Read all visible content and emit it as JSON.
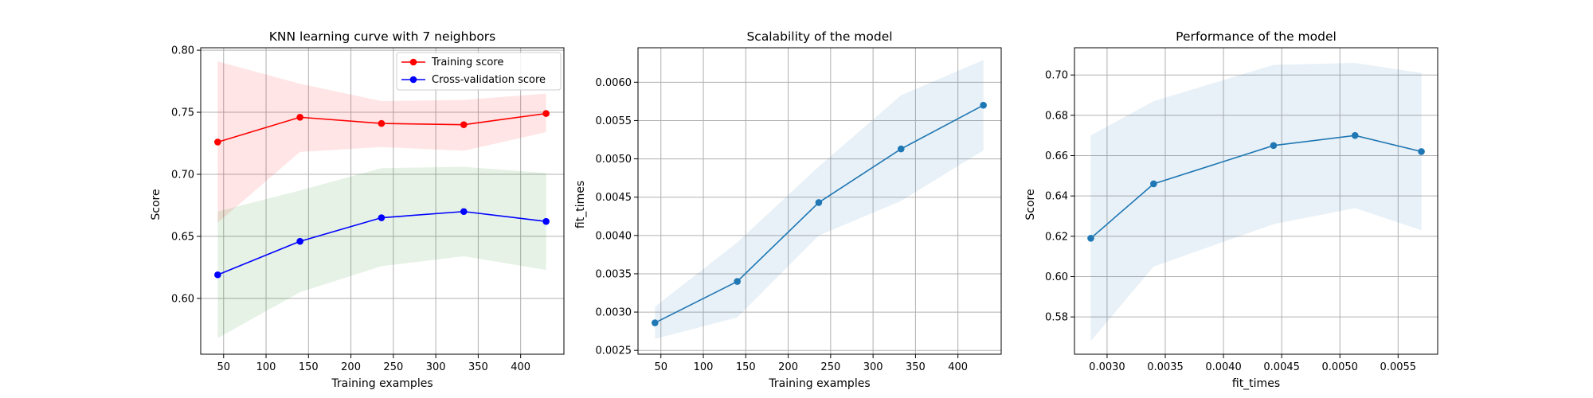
{
  "chart_data": [
    {
      "type": "line",
      "title": "KNN learning curve with 7 neighbors",
      "xlabel": "Training examples",
      "ylabel": "Score",
      "xlim": [
        23,
        451
      ],
      "ylim": [
        0.555,
        0.802
      ],
      "xticks": [
        50,
        100,
        150,
        200,
        250,
        300,
        350,
        400
      ],
      "yticks": [
        0.6,
        0.65,
        0.7,
        0.75,
        0.8
      ],
      "ytick_decimals": 2,
      "grid": true,
      "legend": "top-right",
      "x": [
        43,
        140,
        236,
        333,
        430
      ],
      "series": [
        {
          "name": "Training score",
          "color": "#ff0000",
          "marker": "circle",
          "values": [
            0.726,
            0.746,
            0.741,
            0.74,
            0.749
          ],
          "band_lower": [
            0.661,
            0.718,
            0.722,
            0.719,
            0.734
          ],
          "band_upper": [
            0.791,
            0.773,
            0.759,
            0.76,
            0.765
          ],
          "band_color": "#ff0000"
        },
        {
          "name": "Cross-validation score",
          "color": "#0000ff",
          "marker": "circle",
          "values": [
            0.619,
            0.646,
            0.665,
            0.67,
            0.662
          ],
          "band_lower": [
            0.568,
            0.605,
            0.626,
            0.634,
            0.623
          ],
          "band_upper": [
            0.67,
            0.687,
            0.705,
            0.706,
            0.701
          ],
          "band_color": "#008000"
        }
      ]
    },
    {
      "type": "line",
      "title": "Scalability of the model",
      "xlabel": "Training examples",
      "ylabel": "fit_times",
      "xlim": [
        23,
        451
      ],
      "ylim": [
        0.00245,
        0.00645
      ],
      "xticks": [
        50,
        100,
        150,
        200,
        250,
        300,
        350,
        400
      ],
      "yticks": [
        0.0025,
        0.003,
        0.0035,
        0.004,
        0.0045,
        0.005,
        0.0055,
        0.006
      ],
      "ytick_decimals": 4,
      "grid": true,
      "x": [
        43,
        140,
        236,
        333,
        430
      ],
      "series": [
        {
          "name": "",
          "color": "#1f77b4",
          "marker": "circle",
          "values": [
            0.00286,
            0.0034,
            0.00443,
            0.00513,
            0.0057
          ],
          "band_lower": [
            0.00265,
            0.00293,
            0.004,
            0.00445,
            0.00511
          ],
          "band_upper": [
            0.00307,
            0.00391,
            0.0049,
            0.00583,
            0.00629
          ],
          "band_color": "#1f77b4"
        }
      ]
    },
    {
      "type": "line",
      "title": "Performance of the model",
      "xlabel": "fit_times",
      "ylabel": "Score",
      "xlim": [
        0.00272,
        0.00584
      ],
      "ylim": [
        0.5615,
        0.7135
      ],
      "xticks": [
        0.003,
        0.0035,
        0.004,
        0.0045,
        0.005,
        0.0055
      ],
      "xtick_decimals": 4,
      "yticks": [
        0.58,
        0.6,
        0.62,
        0.64,
        0.66,
        0.68,
        0.7
      ],
      "ytick_decimals": 2,
      "grid": true,
      "x": [
        0.00286,
        0.0034,
        0.00443,
        0.00513,
        0.0057
      ],
      "series": [
        {
          "name": "",
          "color": "#1f77b4",
          "marker": "circle",
          "values": [
            0.619,
            0.646,
            0.665,
            0.67,
            0.662
          ],
          "band_lower": [
            0.568,
            0.605,
            0.626,
            0.634,
            0.623
          ],
          "band_upper": [
            0.67,
            0.687,
            0.705,
            0.706,
            0.701
          ],
          "band_color": "#1f77b4"
        }
      ]
    }
  ]
}
